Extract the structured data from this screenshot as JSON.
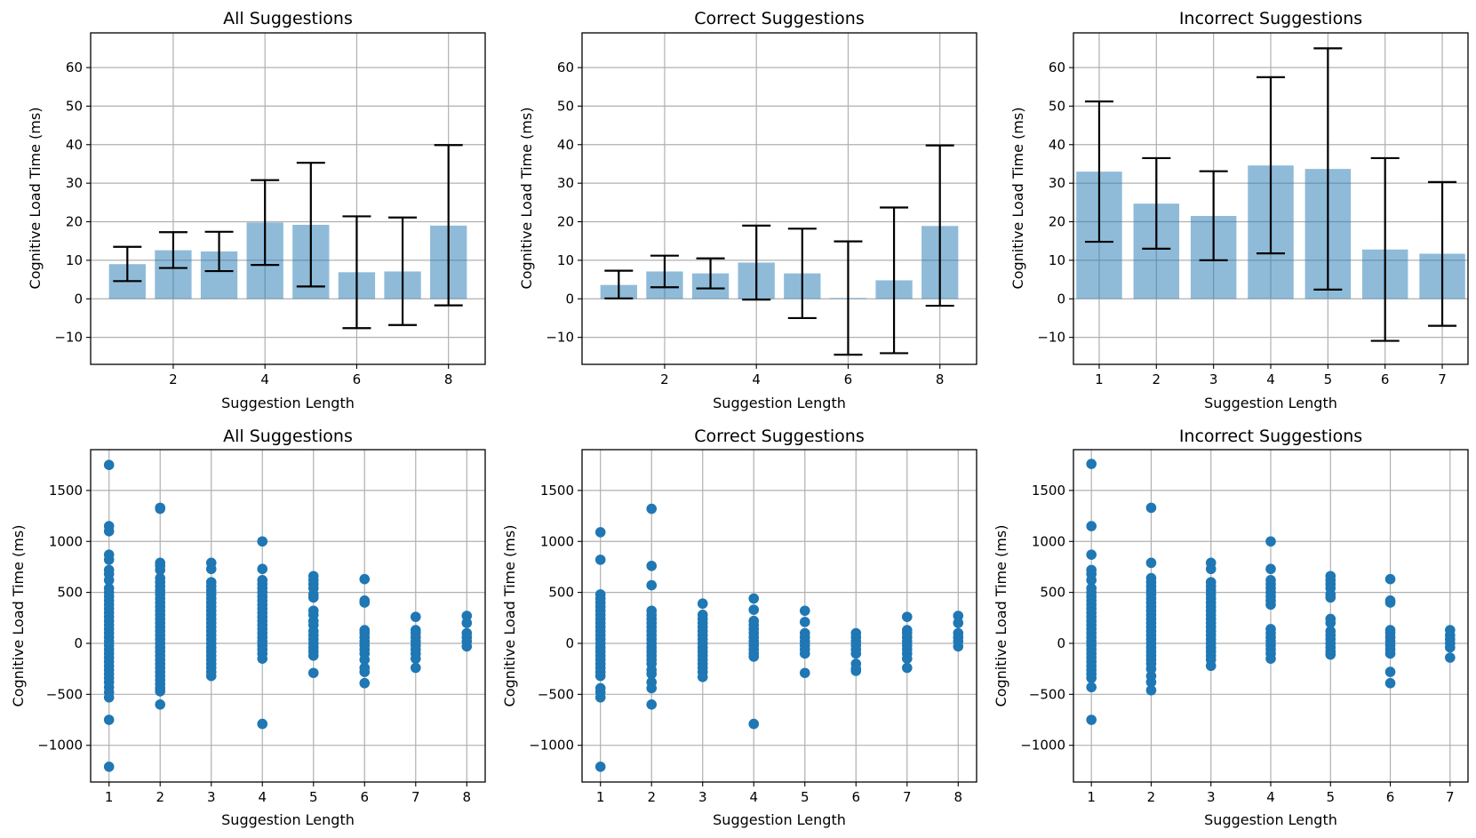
{
  "chart_data": [
    {
      "type": "bar",
      "title": "All Suggestions",
      "xlabel": "Suggestion Length",
      "ylabel": "Cognitive Load Time (ms)",
      "grid": true,
      "x": [
        1,
        2,
        3,
        4,
        5,
        6,
        7,
        8
      ],
      "xticks": [
        "2",
        "4",
        "6",
        "8"
      ],
      "xtick_values": [
        2,
        4,
        6,
        8
      ],
      "yticks": [
        "−10",
        "0",
        "10",
        "20",
        "30",
        "40",
        "50",
        "60"
      ],
      "ytick_values": [
        -10,
        0,
        10,
        20,
        30,
        40,
        50,
        60
      ],
      "xlim": [
        0.2,
        8.8
      ],
      "ylim": [
        -17,
        69
      ],
      "values": [
        9.0,
        12.6,
        12.3,
        19.8,
        19.2,
        6.9,
        7.1,
        19.0
      ],
      "err_low": [
        4.6,
        8.0,
        7.2,
        8.8,
        3.2,
        -7.6,
        -6.8,
        -1.7
      ],
      "err_high": [
        13.5,
        17.3,
        17.4,
        30.8,
        35.3,
        21.4,
        21.1,
        39.9
      ]
    },
    {
      "type": "bar",
      "title": "Correct Suggestions",
      "xlabel": "Suggestion Length",
      "ylabel": "Cognitive Load Time (ms)",
      "grid": true,
      "x": [
        1,
        2,
        3,
        4,
        5,
        6,
        7,
        8
      ],
      "xticks": [
        "2",
        "4",
        "6",
        "8"
      ],
      "xtick_values": [
        2,
        4,
        6,
        8
      ],
      "yticks": [
        "−10",
        "0",
        "10",
        "20",
        "30",
        "40",
        "50",
        "60"
      ],
      "ytick_values": [
        -10,
        0,
        10,
        20,
        30,
        40,
        50,
        60
      ],
      "xlim": [
        0.2,
        8.8
      ],
      "ylim": [
        -17,
        69
      ],
      "values": [
        3.6,
        7.1,
        6.6,
        9.4,
        6.6,
        0.2,
        4.8,
        18.9
      ],
      "err_low": [
        0.1,
        3.0,
        2.7,
        -0.2,
        -5.0,
        -14.5,
        -14.1,
        -1.8
      ],
      "err_high": [
        7.3,
        11.2,
        10.5,
        19.0,
        18.2,
        14.9,
        23.7,
        39.8
      ]
    },
    {
      "type": "bar",
      "title": "Incorrect Suggestions",
      "xlabel": "Suggestion Length",
      "ylabel": "Cognitive Load Time (ms)",
      "grid": true,
      "x": [
        1,
        2,
        3,
        4,
        5,
        6,
        7
      ],
      "xticks": [
        "1",
        "2",
        "3",
        "4",
        "5",
        "6",
        "7"
      ],
      "xtick_values": [
        1,
        2,
        3,
        4,
        5,
        6,
        7
      ],
      "yticks": [
        "−10",
        "0",
        "10",
        "20",
        "30",
        "40",
        "50",
        "60"
      ],
      "ytick_values": [
        -10,
        0,
        10,
        20,
        30,
        40,
        50,
        60
      ],
      "xlim": [
        0.55,
        7.45
      ],
      "ylim": [
        -17,
        69
      ],
      "values": [
        33.0,
        24.7,
        21.5,
        34.6,
        33.7,
        12.8,
        11.7
      ],
      "err_low": [
        14.8,
        13.0,
        10.0,
        11.8,
        2.4,
        -10.9,
        -7.0
      ],
      "err_high": [
        51.2,
        36.5,
        33.1,
        57.5,
        65.0,
        36.5,
        30.3
      ]
    },
    {
      "type": "scatter",
      "title": "All Suggestions",
      "xlabel": "Suggestion Length",
      "ylabel": "Cognitive Load Time (ms)",
      "grid": true,
      "xticks": [
        "1",
        "2",
        "3",
        "4",
        "5",
        "6",
        "7",
        "8"
      ],
      "xtick_values": [
        1,
        2,
        3,
        4,
        5,
        6,
        7,
        8
      ],
      "yticks": [
        "−1000",
        "−500",
        "0",
        "500",
        "1000",
        "1500"
      ],
      "ytick_values": [
        -1000,
        -500,
        0,
        500,
        1000,
        1500
      ],
      "xlim": [
        0.64,
        8.36
      ],
      "ylim": [
        -1360,
        1900
      ],
      "points": [
        {
          "x": 1,
          "y": [
            1750,
            1150,
            1100,
            870,
            820,
            720,
            680,
            620,
            540,
            500,
            460,
            420,
            380,
            340,
            300,
            260,
            220,
            180,
            140,
            100,
            60,
            20,
            -20,
            -60,
            -100,
            -140,
            -180,
            -220,
            -260,
            -300,
            -340,
            -380,
            -430,
            -480,
            -530,
            -750,
            -1210
          ]
        },
        {
          "x": 2,
          "y": [
            1330,
            1320,
            790,
            760,
            720,
            640,
            600,
            560,
            520,
            480,
            440,
            400,
            360,
            320,
            280,
            240,
            200,
            160,
            120,
            80,
            40,
            0,
            -40,
            -80,
            -120,
            -160,
            -200,
            -240,
            -280,
            -320,
            -360,
            -400,
            -440,
            -470,
            -600
          ]
        },
        {
          "x": 3,
          "y": [
            790,
            730,
            600,
            560,
            520,
            480,
            440,
            400,
            360,
            320,
            280,
            240,
            200,
            160,
            120,
            80,
            40,
            0,
            -40,
            -80,
            -120,
            -160,
            -200,
            -240,
            -280,
            -320
          ]
        },
        {
          "x": 4,
          "y": [
            1000,
            730,
            620,
            580,
            540,
            500,
            460,
            420,
            380,
            340,
            300,
            260,
            220,
            180,
            140,
            100,
            60,
            20,
            -20,
            -60,
            -100,
            -150,
            -790
          ]
        },
        {
          "x": 5,
          "y": [
            660,
            620,
            580,
            540,
            480,
            450,
            320,
            280,
            220,
            180,
            120,
            80,
            40,
            0,
            -40,
            -80,
            -120,
            -290
          ]
        },
        {
          "x": 6,
          "y": [
            630,
            420,
            400,
            130,
            100,
            60,
            20,
            -20,
            -60,
            -100,
            -160,
            -240,
            -280,
            -390
          ]
        },
        {
          "x": 7,
          "y": [
            260,
            130,
            100,
            60,
            20,
            -20,
            -60,
            -100,
            -150,
            -240
          ]
        },
        {
          "x": 8,
          "y": [
            270,
            200,
            100,
            60,
            20,
            -30
          ]
        }
      ]
    },
    {
      "type": "scatter",
      "title": "Correct Suggestions",
      "xlabel": "Suggestion Length",
      "ylabel": "Cognitive Load Time (ms)",
      "grid": true,
      "xticks": [
        "1",
        "2",
        "3",
        "4",
        "5",
        "6",
        "7",
        "8"
      ],
      "xtick_values": [
        1,
        2,
        3,
        4,
        5,
        6,
        7,
        8
      ],
      "yticks": [
        "−1000",
        "−500",
        "0",
        "500",
        "1000",
        "1500"
      ],
      "ytick_values": [
        -1000,
        -500,
        0,
        500,
        1000,
        1500
      ],
      "xlim": [
        0.64,
        8.36
      ],
      "ylim": [
        -1360,
        1900
      ],
      "points": [
        {
          "x": 1,
          "y": [
            1090,
            820,
            480,
            440,
            400,
            360,
            320,
            280,
            240,
            200,
            160,
            120,
            80,
            40,
            0,
            -40,
            -80,
            -120,
            -160,
            -200,
            -240,
            -280,
            -320,
            -440,
            -480,
            -530,
            -1210
          ]
        },
        {
          "x": 2,
          "y": [
            1320,
            760,
            570,
            320,
            280,
            240,
            200,
            160,
            120,
            80,
            40,
            0,
            -40,
            -80,
            -120,
            -160,
            -200,
            -260,
            -300,
            -380,
            -440,
            -600
          ]
        },
        {
          "x": 3,
          "y": [
            390,
            280,
            240,
            200,
            160,
            120,
            80,
            40,
            0,
            -40,
            -80,
            -120,
            -160,
            -200,
            -240,
            -280,
            -330
          ]
        },
        {
          "x": 4,
          "y": [
            440,
            330,
            220,
            180,
            140,
            100,
            60,
            20,
            -20,
            -60,
            -100,
            -130,
            -790
          ]
        },
        {
          "x": 5,
          "y": [
            320,
            210,
            100,
            60,
            20,
            -20,
            -60,
            -100,
            -290
          ]
        },
        {
          "x": 6,
          "y": [
            100,
            60,
            20,
            -20,
            -60,
            -100,
            -200,
            -250,
            -270
          ]
        },
        {
          "x": 7,
          "y": [
            260,
            130,
            100,
            60,
            20,
            -20,
            -60,
            -100,
            -150,
            -240
          ]
        },
        {
          "x": 8,
          "y": [
            270,
            200,
            100,
            60,
            20,
            -30
          ]
        }
      ]
    },
    {
      "type": "scatter",
      "title": "Incorrect Suggestions",
      "xlabel": "Suggestion Length",
      "ylabel": "Cognitive Load Time (ms)",
      "grid": true,
      "xticks": [
        "1",
        "2",
        "3",
        "4",
        "5",
        "6",
        "7"
      ],
      "xtick_values": [
        1,
        2,
        3,
        4,
        5,
        6,
        7
      ],
      "yticks": [
        "−1000",
        "−500",
        "0",
        "500",
        "1000",
        "1500"
      ],
      "ytick_values": [
        -1000,
        -500,
        0,
        500,
        1000,
        1500
      ],
      "xlim": [
        0.7,
        7.3
      ],
      "ylim": [
        -1360,
        1900
      ],
      "points": [
        {
          "x": 1,
          "y": [
            1760,
            1150,
            870,
            720,
            680,
            620,
            540,
            500,
            460,
            420,
            380,
            340,
            300,
            260,
            220,
            180,
            140,
            100,
            60,
            20,
            -20,
            -60,
            -100,
            -140,
            -180,
            -220,
            -260,
            -300,
            -340,
            -430,
            -750
          ]
        },
        {
          "x": 2,
          "y": [
            1330,
            790,
            640,
            600,
            560,
            520,
            480,
            440,
            400,
            360,
            320,
            280,
            240,
            200,
            160,
            120,
            80,
            40,
            0,
            -40,
            -80,
            -120,
            -160,
            -200,
            -250,
            -320,
            -380,
            -460
          ]
        },
        {
          "x": 3,
          "y": [
            790,
            730,
            600,
            560,
            520,
            480,
            440,
            400,
            360,
            320,
            280,
            240,
            200,
            160,
            120,
            80,
            40,
            0,
            -40,
            -80,
            -120,
            -160,
            -220
          ]
        },
        {
          "x": 4,
          "y": [
            1000,
            730,
            620,
            580,
            540,
            500,
            460,
            420,
            380,
            140,
            100,
            60,
            20,
            -20,
            -60,
            -100,
            -150
          ]
        },
        {
          "x": 5,
          "y": [
            660,
            620,
            580,
            540,
            480,
            450,
            240,
            200,
            120,
            80,
            40,
            0,
            -40,
            -80,
            -110
          ]
        },
        {
          "x": 6,
          "y": [
            630,
            420,
            400,
            130,
            100,
            60,
            20,
            -20,
            -60,
            -100,
            -280,
            -390
          ]
        },
        {
          "x": 7,
          "y": [
            130,
            80,
            40,
            0,
            -40,
            -140
          ]
        }
      ]
    }
  ]
}
